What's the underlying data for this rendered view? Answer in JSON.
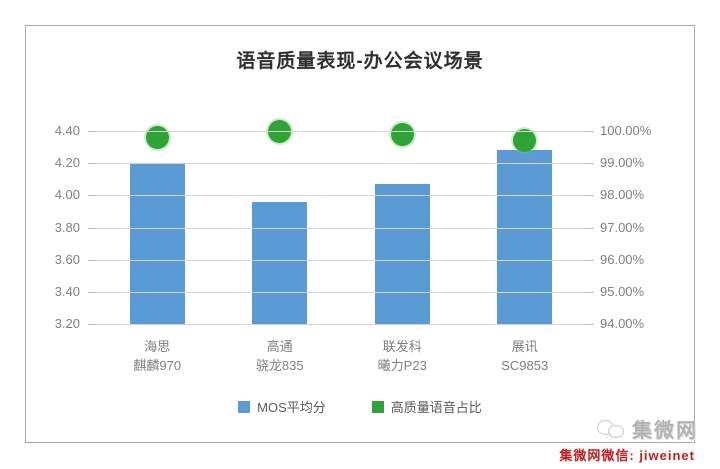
{
  "title": "语音质量表现-办公会议场景",
  "legend": [
    {
      "label": "MOS平均分",
      "color": "#5B9BD5"
    },
    {
      "label": "高质量语音占比",
      "color": "#2FA336"
    }
  ],
  "watermark": {
    "logo_text": "集微网",
    "caption": "集微网微信: jiweinet"
  },
  "chart_data": {
    "type": "bar",
    "subtype": "combo-bar-scatter",
    "title": "语音质量表现-办公会议场景",
    "categories_line1": [
      "海思",
      "高通",
      "联发科",
      "展讯"
    ],
    "categories_line2": [
      "麒麟970",
      "骁龙835",
      "曦力P23",
      "SC9853"
    ],
    "series": [
      {
        "name": "MOS平均分",
        "type": "bar",
        "axis": "left",
        "color": "#5B9BD5",
        "values": [
          4.2,
          3.96,
          4.07,
          4.28
        ]
      },
      {
        "name": "高质量语音占比",
        "type": "scatter",
        "axis": "right",
        "color": "#2FA336",
        "values": [
          99.8,
          100.0,
          99.9,
          99.7
        ]
      }
    ],
    "left_axis": {
      "min": 3.2,
      "max": 4.4,
      "step": 0.2,
      "ticks": [
        "4.40",
        "4.20",
        "4.00",
        "3.80",
        "3.60",
        "3.40",
        "3.20"
      ]
    },
    "right_axis": {
      "min": 94,
      "max": 100,
      "step": 1,
      "ticks": [
        "100.00%",
        "99.00%",
        "98.00%",
        "97.00%",
        "96.00%",
        "95.00%",
        "94.00%"
      ]
    },
    "grid": true,
    "legend_position": "bottom"
  }
}
